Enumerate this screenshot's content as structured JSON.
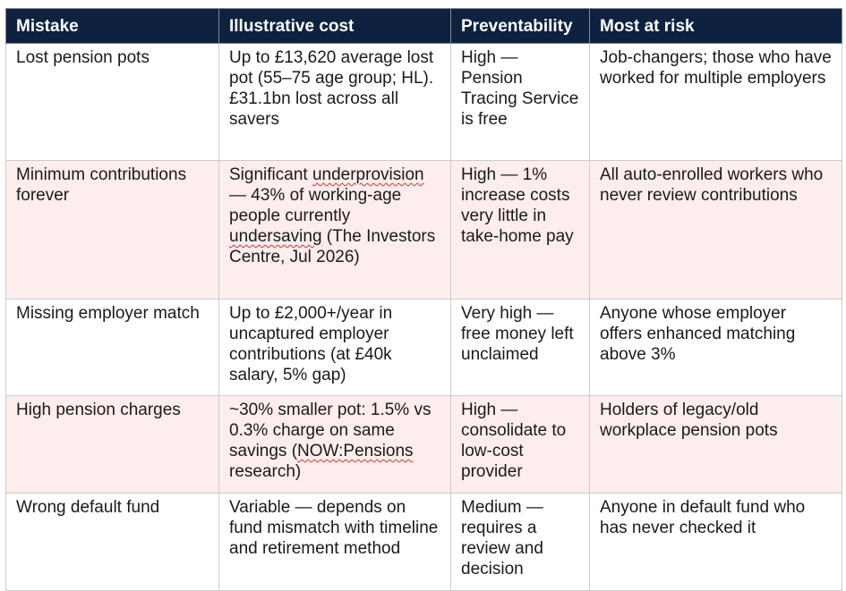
{
  "table": {
    "headers": [
      "Mistake",
      "Illustrative cost",
      "Preventability",
      "Most at risk"
    ],
    "rows": [
      {
        "mistake": "Lost pension pots",
        "cost": "Up to £13,620 average lost pot (55–75 age group; HL). £31.1bn lost across all savers",
        "preventability": "High — Pension Tracing Service is free",
        "at_risk": "Job-changers; those who have worked for multiple employers"
      },
      {
        "mistake": "Minimum contributions forever",
        "cost_parts": {
          "a": "Significant ",
          "b": "underprovision",
          "c": " — 43% of working-age people currently ",
          "d": "undersaving",
          "e": " (The Investors Centre, Jul 2026)"
        },
        "preventability": "High — 1% increase costs very little in take-home pay",
        "at_risk": "All auto-enrolled workers who never review contributions"
      },
      {
        "mistake": "Missing employer match",
        "cost": "Up to £2,000+/year in uncaptured employer contributions (at £40k salary, 5% gap)",
        "preventability": "Very high — free money left unclaimed",
        "at_risk": "Anyone whose employer offers enhanced matching above 3%"
      },
      {
        "mistake": "High pension charges",
        "cost_parts": {
          "a": "~30% smaller pot: 1.5% vs 0.3% charge on same savings (",
          "b": "NOW:Pensions",
          "c": " research)"
        },
        "preventability": "High — consolidate to low-cost provider",
        "at_risk": "Holders of legacy/old workplace pension pots"
      },
      {
        "mistake": "Wrong default fund",
        "cost": "Variable — depends on fund mismatch with timeline and retirement method",
        "preventability": "Medium — requires a review and decision",
        "at_risk": "Anyone in default fund who has never checked it"
      }
    ]
  },
  "colors": {
    "header_bg": "#0e2240",
    "alt_row_bg": "#fdeded",
    "spell_underline": "#d0342c"
  }
}
